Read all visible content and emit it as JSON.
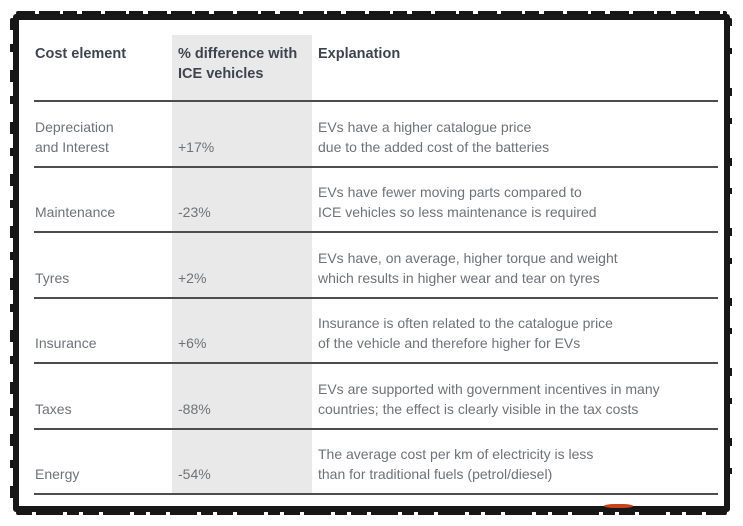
{
  "frame": {
    "border_color": "#171717",
    "background": "#ffffff"
  },
  "colors": {
    "header_text": "#3d4450",
    "body_text": "#6e7277",
    "divider": "#4d4d4d",
    "highlight_column": "#e9e9e9",
    "artifact_red": "#c84418"
  },
  "table": {
    "columns": [
      "Cost element",
      "% difference with\nICE vehicles",
      "Explanation"
    ],
    "rows": [
      {
        "cost_element": "Depreciation\nand Interest",
        "difference": "+17%",
        "explanation": "EVs have a higher catalogue price\ndue to the added cost of the batteries"
      },
      {
        "cost_element": "Maintenance",
        "difference": "-23%",
        "explanation": "EVs have fewer moving parts compared to\nICE vehicles so less maintenance is required"
      },
      {
        "cost_element": "Tyres",
        "difference": "+2%",
        "explanation": "EVs have, on average, higher torque and weight\nwhich results in higher wear and tear on tyres"
      },
      {
        "cost_element": "Insurance",
        "difference": "+6%",
        "explanation": "Insurance is often related to the catalogue price\nof the vehicle and therefore higher for EVs"
      },
      {
        "cost_element": "Taxes",
        "difference": "-88%",
        "explanation": "EVs are supported with government incentives in many\ncountries; the effect is clearly visible in the tax costs"
      },
      {
        "cost_element": "Energy",
        "difference": "-54%",
        "explanation": "The average cost per km of electricity is less\nthan for traditional fuels (petrol/diesel)"
      }
    ]
  }
}
